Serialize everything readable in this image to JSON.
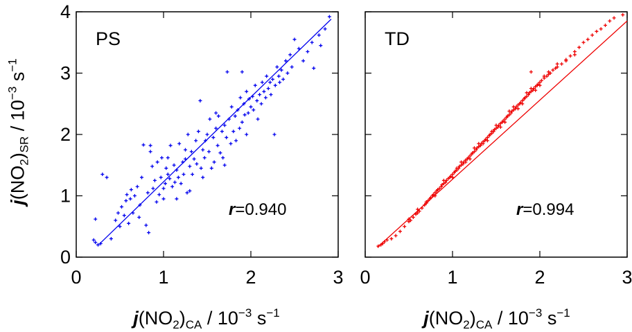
{
  "figure": {
    "y_label": {
      "var": "j",
      "main": "(NO",
      "sub": "2",
      "close": ")",
      "subscript": "SR",
      "unit": " / 10",
      "exp": "−3",
      "unit2": " s",
      "unit_exp": "−1"
    },
    "x_label": {
      "var": "j",
      "main": "(NO",
      "sub": "2",
      "close": ")",
      "subscript": "CA",
      "unit": " / 10",
      "exp": "−3",
      "unit2": " s",
      "unit_exp": "−1"
    }
  },
  "chart_data": [
    {
      "type": "scatter",
      "panel_label": "PS",
      "annotation_var": "r",
      "annotation_value": "=0.940",
      "color": "#0000ee",
      "xlim": [
        0,
        3
      ],
      "ylim": [
        0,
        4
      ],
      "x_ticks": [
        "0",
        "1",
        "2",
        "3"
      ],
      "y_ticks": [
        "0",
        "1",
        "2",
        "3",
        "4"
      ],
      "fit_line": {
        "x": [
          0.27,
          2.92
        ],
        "y": [
          0.22,
          3.88
        ]
      },
      "points": [
        [
          0.2,
          0.28
        ],
        [
          0.22,
          0.24
        ],
        [
          0.25,
          0.2
        ],
        [
          0.28,
          0.22
        ],
        [
          0.22,
          0.62
        ],
        [
          0.3,
          1.35
        ],
        [
          0.35,
          1.3
        ],
        [
          0.4,
          0.3
        ],
        [
          0.45,
          0.6
        ],
        [
          0.48,
          0.72
        ],
        [
          0.5,
          0.5
        ],
        [
          0.52,
          0.82
        ],
        [
          0.55,
          0.68
        ],
        [
          0.57,
          0.92
        ],
        [
          0.58,
          1.02
        ],
        [
          0.6,
          0.55
        ],
        [
          0.62,
          0.95
        ],
        [
          0.63,
          1.1
        ],
        [
          0.65,
          0.72
        ],
        [
          0.67,
          1.0
        ],
        [
          0.7,
          1.15
        ],
        [
          0.72,
          0.65
        ],
        [
          0.73,
          0.85
        ],
        [
          0.75,
          1.3
        ],
        [
          0.77,
          1.83
        ],
        [
          0.8,
          0.52
        ],
        [
          0.82,
          1.05
        ],
        [
          0.83,
          0.4
        ],
        [
          0.85,
          1.72
        ],
        [
          0.85,
          1.82
        ],
        [
          0.87,
          1.48
        ],
        [
          0.88,
          1.12
        ],
        [
          0.9,
          1.25
        ],
        [
          0.92,
          0.9
        ],
        [
          0.93,
          1.55
        ],
        [
          0.95,
          1.02
        ],
        [
          0.97,
          1.3
        ],
        [
          0.98,
          1.62
        ],
        [
          1.0,
          1.12
        ],
        [
          1.02,
          1.2
        ],
        [
          1.03,
          1.45
        ],
        [
          1.05,
          1.62
        ],
        [
          1.05,
          1.35
        ],
        [
          1.07,
          1.28
        ],
        [
          1.08,
          1.82
        ],
        [
          1.1,
          1.15
        ],
        [
          1.12,
          1.5
        ],
        [
          1.13,
          1.22
        ],
        [
          1.15,
          1.42
        ],
        [
          1.17,
          1.3
        ],
        [
          1.18,
          1.85
        ],
        [
          1.2,
          1.2
        ],
        [
          1.22,
          1.55
        ],
        [
          1.23,
          1.35
        ],
        [
          1.25,
          1.6
        ],
        [
          1.27,
          1.05
        ],
        [
          1.28,
          2.0
        ],
        [
          1.3,
          1.48
        ],
        [
          1.32,
          1.72
        ],
        [
          1.33,
          1.35
        ],
        [
          1.35,
          1.6
        ],
        [
          1.37,
          1.9
        ],
        [
          1.38,
          1.52
        ],
        [
          1.4,
          2.05
        ],
        [
          1.42,
          2.55
        ],
        [
          1.43,
          1.45
        ],
        [
          1.45,
          1.75
        ],
        [
          1.47,
          1.62
        ],
        [
          1.48,
          1.9
        ],
        [
          1.5,
          2.0
        ],
        [
          1.52,
          1.72
        ],
        [
          1.53,
          2.25
        ],
        [
          1.55,
          1.45
        ],
        [
          1.57,
          1.95
        ],
        [
          1.58,
          1.55
        ],
        [
          1.6,
          2.1
        ],
        [
          1.62,
          1.82
        ],
        [
          1.63,
          2.3
        ],
        [
          1.65,
          1.7
        ],
        [
          1.67,
          2.05
        ],
        [
          1.68,
          1.62
        ],
        [
          1.7,
          2.15
        ],
        [
          1.72,
          1.95
        ],
        [
          1.73,
          3.02
        ],
        [
          1.75,
          2.25
        ],
        [
          1.77,
          1.85
        ],
        [
          1.78,
          2.45
        ],
        [
          1.8,
          2.05
        ],
        [
          1.82,
          2.3
        ],
        [
          1.83,
          1.9
        ],
        [
          1.85,
          2.4
        ],
        [
          1.87,
          2.1
        ],
        [
          1.88,
          2.6
        ],
        [
          1.9,
          2.2
        ],
        [
          1.92,
          2.5
        ],
        [
          1.93,
          2.32
        ],
        [
          1.95,
          2.7
        ],
        [
          1.97,
          2.35
        ],
        [
          1.98,
          2.58
        ],
        [
          2.0,
          2.45
        ],
        [
          2.02,
          2.62
        ],
        [
          2.03,
          2.4
        ],
        [
          2.05,
          2.8
        ],
        [
          2.07,
          2.55
        ],
        [
          2.08,
          2.25
        ],
        [
          2.1,
          2.65
        ],
        [
          2.12,
          2.5
        ],
        [
          2.13,
          2.85
        ],
        [
          2.15,
          2.7
        ],
        [
          2.17,
          2.6
        ],
        [
          2.18,
          2.95
        ],
        [
          2.2,
          2.75
        ],
        [
          2.22,
          2.85
        ],
        [
          2.23,
          2.65
        ],
        [
          2.25,
          2.9
        ],
        [
          2.27,
          2.0
        ],
        [
          2.28,
          2.8
        ],
        [
          2.3,
          3.1
        ],
        [
          2.32,
          2.95
        ],
        [
          2.33,
          2.85
        ],
        [
          2.35,
          3.05
        ],
        [
          2.37,
          2.9
        ],
        [
          2.4,
          3.2
        ],
        [
          2.42,
          3.0
        ],
        [
          2.45,
          3.3
        ],
        [
          2.47,
          3.1
        ],
        [
          2.5,
          3.55
        ],
        [
          2.55,
          3.4
        ],
        [
          2.6,
          3.2
        ],
        [
          2.65,
          3.35
        ],
        [
          2.7,
          3.5
        ],
        [
          2.72,
          3.08
        ],
        [
          2.78,
          3.62
        ],
        [
          2.8,
          3.45
        ],
        [
          2.85,
          3.72
        ],
        [
          2.9,
          3.92
        ],
        [
          1.9,
          3.02
        ],
        [
          1.6,
          2.35
        ],
        [
          1.25,
          1.75
        ],
        [
          1.0,
          0.95
        ],
        [
          1.15,
          0.95
        ],
        [
          1.3,
          1.08
        ],
        [
          1.45,
          1.3
        ],
        [
          1.7,
          1.5
        ],
        [
          1.95,
          2.0
        ]
      ]
    },
    {
      "type": "scatter",
      "panel_label": "TD",
      "annotation_var": "r",
      "annotation_value": "=0.994",
      "color": "#ee0000",
      "xlim": [
        0,
        3
      ],
      "ylim": [
        0,
        4
      ],
      "x_ticks": [
        "0",
        "1",
        "2",
        "3"
      ],
      "y_ticks": [
        "0",
        "1",
        "2",
        "3",
        "4"
      ],
      "fit_line": {
        "x": [
          0.14,
          3.0
        ],
        "y": [
          0.16,
          3.85
        ]
      },
      "points": [
        [
          0.15,
          0.18
        ],
        [
          0.18,
          0.2
        ],
        [
          0.2,
          0.22
        ],
        [
          0.22,
          0.25
        ],
        [
          0.25,
          0.28
        ],
        [
          0.3,
          0.3
        ],
        [
          0.35,
          0.35
        ],
        [
          0.4,
          0.42
        ],
        [
          0.45,
          0.5
        ],
        [
          0.5,
          0.58
        ],
        [
          0.52,
          0.6
        ],
        [
          0.55,
          0.65
        ],
        [
          0.58,
          0.7
        ],
        [
          0.6,
          0.72
        ],
        [
          0.62,
          0.75
        ],
        [
          0.65,
          0.8
        ],
        [
          0.68,
          0.85
        ],
        [
          0.7,
          0.9
        ],
        [
          0.72,
          0.92
        ],
        [
          0.74,
          0.95
        ],
        [
          0.75,
          0.97
        ],
        [
          0.77,
          1.0
        ],
        [
          0.78,
          1.02
        ],
        [
          0.8,
          1.05
        ],
        [
          0.82,
          1.08
        ],
        [
          0.83,
          1.1
        ],
        [
          0.85,
          1.12
        ],
        [
          0.87,
          1.15
        ],
        [
          0.88,
          1.18
        ],
        [
          0.9,
          1.2
        ],
        [
          0.92,
          1.22
        ],
        [
          0.93,
          1.25
        ],
        [
          0.95,
          1.28
        ],
        [
          0.97,
          1.3
        ],
        [
          0.98,
          1.32
        ],
        [
          1.0,
          1.35
        ],
        [
          1.02,
          1.38
        ],
        [
          1.03,
          1.4
        ],
        [
          1.05,
          1.42
        ],
        [
          1.07,
          1.45
        ],
        [
          1.08,
          1.48
        ],
        [
          1.1,
          1.5
        ],
        [
          1.12,
          1.52
        ],
        [
          1.13,
          1.55
        ],
        [
          1.15,
          1.58
        ],
        [
          1.17,
          1.6
        ],
        [
          1.18,
          1.62
        ],
        [
          1.2,
          1.65
        ],
        [
          1.22,
          1.68
        ],
        [
          1.23,
          1.7
        ],
        [
          1.25,
          1.72
        ],
        [
          1.27,
          1.75
        ],
        [
          1.28,
          1.78
        ],
        [
          1.3,
          1.8
        ],
        [
          1.32,
          1.82
        ],
        [
          1.33,
          1.85
        ],
        [
          1.35,
          1.88
        ],
        [
          1.37,
          1.9
        ],
        [
          1.38,
          1.92
        ],
        [
          1.4,
          1.95
        ],
        [
          1.42,
          1.98
        ],
        [
          1.43,
          2.0
        ],
        [
          1.45,
          2.02
        ],
        [
          1.47,
          2.05
        ],
        [
          1.48,
          2.08
        ],
        [
          1.5,
          2.1
        ],
        [
          1.52,
          2.12
        ],
        [
          1.53,
          2.15
        ],
        [
          1.55,
          2.18
        ],
        [
          1.57,
          2.2
        ],
        [
          1.58,
          2.22
        ],
        [
          1.6,
          2.25
        ],
        [
          1.62,
          2.28
        ],
        [
          1.63,
          2.3
        ],
        [
          1.65,
          2.32
        ],
        [
          1.67,
          2.35
        ],
        [
          1.68,
          2.38
        ],
        [
          1.7,
          2.4
        ],
        [
          1.72,
          2.42
        ],
        [
          1.73,
          2.45
        ],
        [
          1.75,
          2.48
        ],
        [
          1.77,
          2.5
        ],
        [
          1.78,
          2.52
        ],
        [
          1.8,
          2.55
        ],
        [
          1.82,
          2.58
        ],
        [
          1.83,
          2.6
        ],
        [
          1.85,
          2.62
        ],
        [
          1.87,
          2.65
        ],
        [
          1.88,
          2.68
        ],
        [
          1.9,
          2.7
        ],
        [
          1.92,
          2.72
        ],
        [
          1.93,
          2.75
        ],
        [
          1.95,
          2.78
        ],
        [
          1.97,
          2.8
        ],
        [
          1.98,
          2.82
        ],
        [
          2.0,
          2.85
        ],
        [
          2.02,
          2.88
        ],
        [
          2.05,
          2.92
        ],
        [
          2.08,
          2.95
        ],
        [
          2.1,
          2.98
        ],
        [
          2.12,
          3.0
        ],
        [
          2.15,
          3.05
        ],
        [
          2.18,
          3.08
        ],
        [
          2.2,
          3.1
        ],
        [
          2.25,
          3.15
        ],
        [
          2.3,
          3.22
        ],
        [
          2.35,
          3.28
        ],
        [
          2.4,
          3.35
        ],
        [
          2.45,
          3.42
        ],
        [
          2.5,
          3.5
        ],
        [
          2.55,
          3.55
        ],
        [
          2.6,
          3.62
        ],
        [
          2.65,
          3.68
        ],
        [
          2.7,
          3.72
        ],
        [
          2.75,
          3.78
        ],
        [
          2.8,
          3.85
        ],
        [
          2.85,
          3.9
        ],
        [
          2.95,
          3.95
        ],
        [
          0.8,
          1.0
        ],
        [
          0.9,
          1.25
        ],
        [
          1.0,
          1.3
        ],
        [
          1.1,
          1.55
        ],
        [
          1.2,
          1.6
        ],
        [
          1.3,
          1.85
        ],
        [
          1.4,
          1.9
        ],
        [
          1.5,
          2.15
        ],
        [
          1.6,
          2.2
        ],
        [
          1.7,
          2.45
        ],
        [
          1.8,
          2.5
        ],
        [
          1.9,
          2.75
        ],
        [
          2.0,
          2.8
        ],
        [
          2.1,
          3.02
        ],
        [
          2.2,
          3.15
        ],
        [
          0.7,
          0.88
        ],
        [
          0.6,
          0.78
        ],
        [
          0.5,
          0.62
        ],
        [
          1.05,
          1.45
        ],
        [
          1.15,
          1.55
        ],
        [
          1.25,
          1.78
        ],
        [
          1.35,
          1.85
        ],
        [
          1.45,
          2.05
        ],
        [
          1.55,
          2.12
        ],
        [
          1.65,
          2.38
        ],
        [
          1.75,
          2.42
        ],
        [
          1.85,
          2.68
        ],
        [
          1.95,
          2.72
        ],
        [
          2.05,
          2.95
        ],
        [
          2.3,
          3.2
        ],
        [
          1.9,
          3.02
        ],
        [
          2.4,
          3.3
        ]
      ]
    }
  ]
}
